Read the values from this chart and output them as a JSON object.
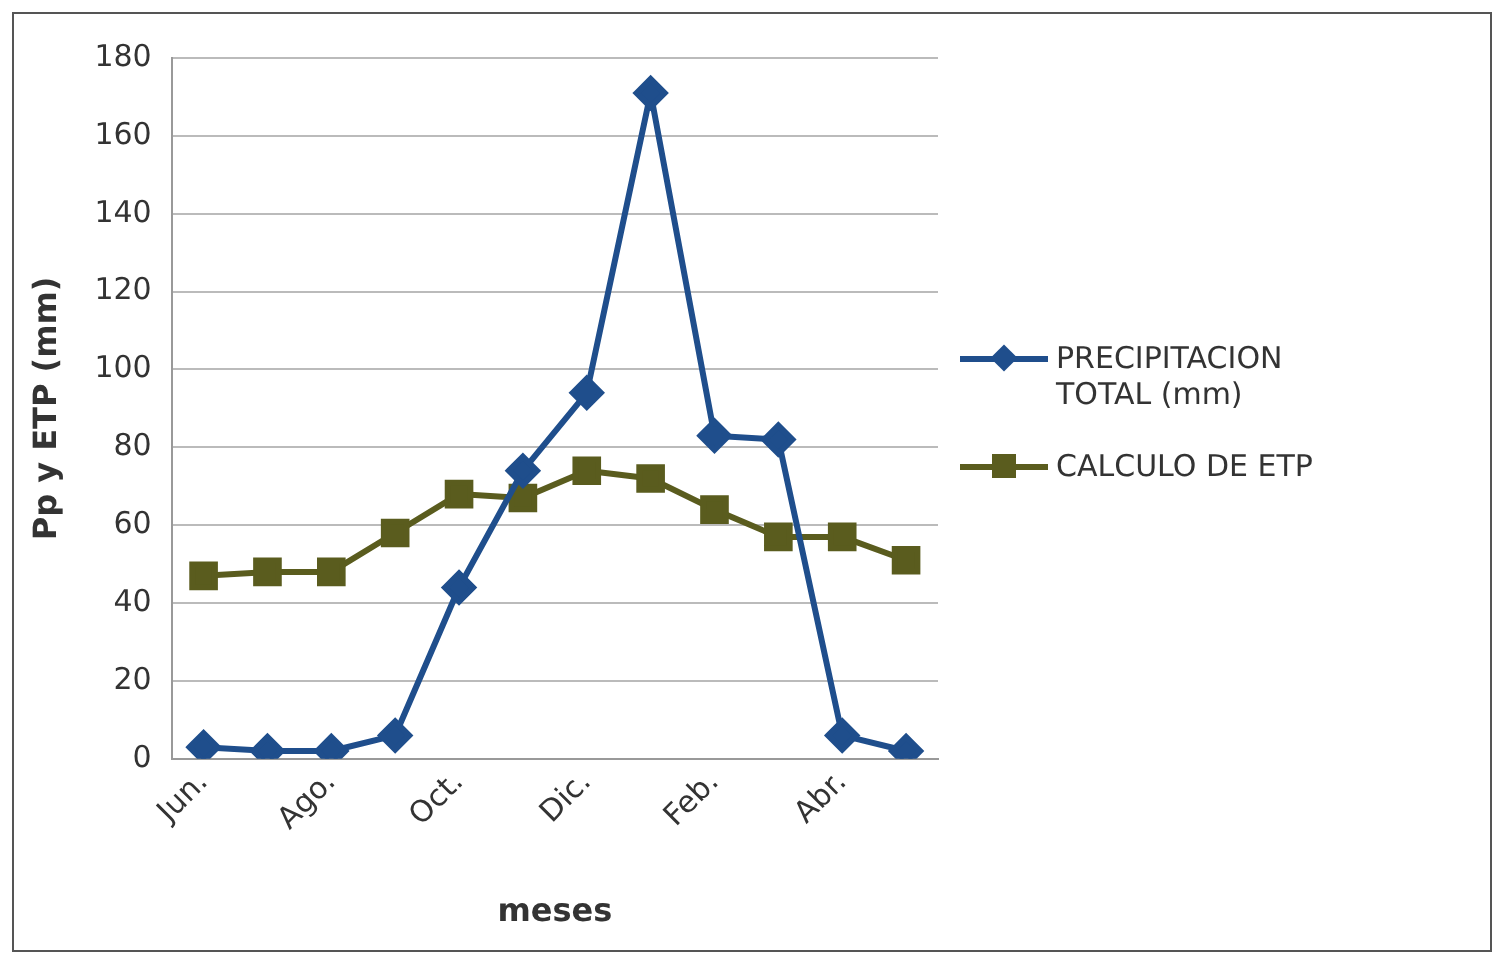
{
  "chart_data": {
    "type": "line",
    "xlabel": "meses",
    "ylabel": "Pp y ETP (mm)",
    "categories": [
      "Jun.",
      null,
      "Ago.",
      null,
      "Oct.",
      null,
      "Dic.",
      null,
      "Feb.",
      null,
      "Abr.",
      null
    ],
    "series": [
      {
        "name": "PRECIPITACION TOTAL (mm)",
        "color": "#1f4e8c",
        "marker": "diamond",
        "values": [
          3,
          2,
          2,
          6,
          44,
          74,
          94,
          171,
          83,
          82,
          6,
          2
        ]
      },
      {
        "name": "CALCULO DE ETP",
        "color": "#5a5c1e",
        "marker": "square",
        "values": [
          47,
          48,
          48,
          58,
          68,
          67,
          74,
          72,
          64,
          57,
          57,
          51
        ]
      }
    ],
    "ylim": [
      0,
      180
    ],
    "yticks": [
      0,
      20,
      40,
      60,
      80,
      100,
      120,
      140,
      160,
      180
    ],
    "grid": "y",
    "legend": "right",
    "line_style": "solid"
  }
}
